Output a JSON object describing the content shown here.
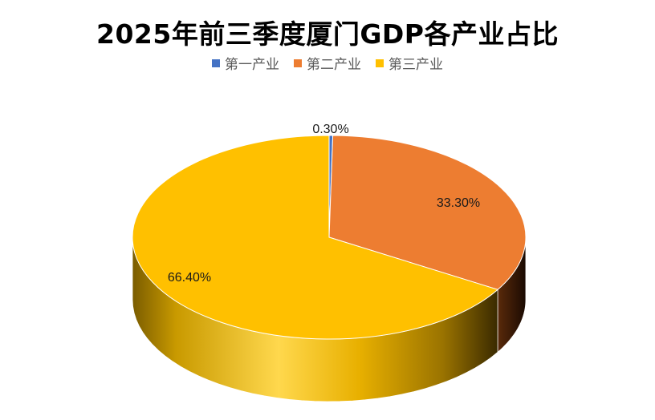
{
  "chart_data": {
    "type": "pie",
    "title": "2025年前三季度厦门GDP各产业占比",
    "categories": [
      "第一产业",
      "第二产业",
      "第三产业"
    ],
    "values": [
      0.3,
      33.3,
      66.4
    ],
    "labels": [
      "0.30%",
      "33.30%",
      "66.40%"
    ],
    "colors": [
      "#4472C4",
      "#ED7D31",
      "#FFC000"
    ],
    "legend_position": "top",
    "style": "3d"
  }
}
